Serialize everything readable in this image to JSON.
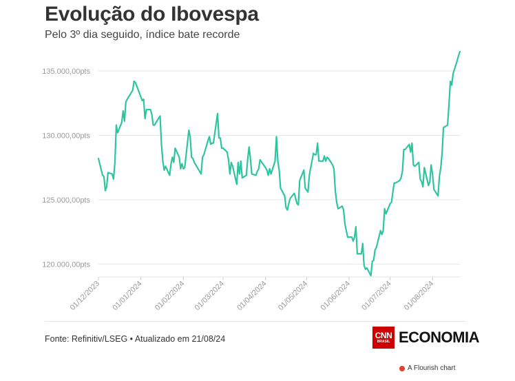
{
  "header": {
    "title": "Evolução do Ibovespa",
    "subtitle": "Pelo 3º dia seguido, índice bate recorde"
  },
  "footer": {
    "source": "Fonte: Refinitiv/LSEG • Atualizado em 21/08/24",
    "logo_badge": "CNN",
    "logo_badge_sub": "BRASIL",
    "logo_text": "ECONOMIA",
    "flourish_credit": "A Flourish chart"
  },
  "colors": {
    "line": "#2ec4a0",
    "grid": "#e6e6e6",
    "brand_red": "#cc0000"
  },
  "chart_data": {
    "type": "line",
    "title": "Evolução do Ibovespa",
    "subtitle": "Pelo 3º dia seguido, índice bate recorde",
    "xlabel": "",
    "ylabel": "",
    "ylim": [
      119000,
      136500
    ],
    "yticks": [
      120000,
      125000,
      130000,
      135000
    ],
    "ytick_labels": [
      "120.000,00pts",
      "125.000,00pts",
      "130.000,00pts",
      "135.000,00pts"
    ],
    "xticks": [
      "2023-12-01",
      "2024-01-01",
      "2024-02-01",
      "2024-03-01",
      "2024-04-01",
      "2024-05-01",
      "2024-06-01",
      "2024-07-01",
      "2024-08-01"
    ],
    "xtick_labels": [
      "01/12/2023",
      "01/01/2024",
      "01/02/2024",
      "01/03/2024",
      "01/04/2024",
      "01/05/2024",
      "01/06/2024",
      "01/07/2024",
      "01/08/2024"
    ],
    "xlim": [
      "2023-12-01",
      "2024-08-21"
    ],
    "grid": true,
    "series": [
      {
        "values": [
          [
            "2023-12-01",
            128200
          ],
          [
            "2023-12-04",
            126900
          ],
          [
            "2023-12-05",
            126800
          ],
          [
            "2023-12-06",
            125700
          ],
          [
            "2023-12-07",
            126000
          ],
          [
            "2023-12-08",
            127100
          ],
          [
            "2023-12-11",
            127000
          ],
          [
            "2023-12-12",
            126600
          ],
          [
            "2023-12-13",
            127900
          ],
          [
            "2023-12-14",
            130800
          ],
          [
            "2023-12-15",
            130200
          ],
          [
            "2023-12-18",
            131000
          ],
          [
            "2023-12-19",
            131900
          ],
          [
            "2023-12-20",
            131100
          ],
          [
            "2023-12-21",
            132600
          ],
          [
            "2023-12-22",
            132800
          ],
          [
            "2023-12-26",
            133500
          ],
          [
            "2023-12-27",
            134200
          ],
          [
            "2023-12-28",
            134100
          ],
          [
            "2024-01-02",
            132700
          ],
          [
            "2024-01-03",
            132800
          ],
          [
            "2024-01-04",
            131300
          ],
          [
            "2024-01-05",
            132000
          ],
          [
            "2024-01-08",
            132000
          ],
          [
            "2024-01-09",
            131600
          ],
          [
            "2024-01-10",
            130800
          ],
          [
            "2024-01-11",
            130800
          ],
          [
            "2024-01-12",
            131000
          ],
          [
            "2024-01-15",
            131500
          ],
          [
            "2024-01-16",
            129300
          ],
          [
            "2024-01-17",
            128000
          ],
          [
            "2024-01-18",
            127300
          ],
          [
            "2024-01-19",
            127600
          ],
          [
            "2024-01-22",
            126900
          ],
          [
            "2024-01-23",
            127800
          ],
          [
            "2024-01-24",
            128300
          ],
          [
            "2024-01-25",
            127900
          ],
          [
            "2024-01-26",
            129000
          ],
          [
            "2024-01-29",
            128300
          ],
          [
            "2024-01-30",
            127400
          ],
          [
            "2024-01-31",
            127800
          ],
          [
            "2024-02-01",
            127400
          ],
          [
            "2024-02-02",
            127500
          ],
          [
            "2024-02-05",
            130400
          ],
          [
            "2024-02-06",
            129900
          ],
          [
            "2024-02-07",
            128300
          ],
          [
            "2024-02-08",
            128200
          ],
          [
            "2024-02-09",
            127900
          ],
          [
            "2024-02-14",
            127000
          ],
          [
            "2024-02-15",
            128300
          ],
          [
            "2024-02-16",
            128500
          ],
          [
            "2024-02-19",
            129600
          ],
          [
            "2024-02-20",
            129900
          ],
          [
            "2024-02-21",
            129300
          ],
          [
            "2024-02-22",
            129400
          ],
          [
            "2024-02-23",
            129400
          ],
          [
            "2024-02-26",
            131700
          ],
          [
            "2024-02-27",
            129800
          ],
          [
            "2024-02-28",
            129800
          ],
          [
            "2024-02-29",
            129000
          ],
          [
            "2024-03-01",
            129000
          ],
          [
            "2024-03-04",
            128700
          ],
          [
            "2024-03-05",
            128100
          ],
          [
            "2024-03-06",
            127000
          ],
          [
            "2024-03-07",
            127900
          ],
          [
            "2024-03-08",
            127600
          ],
          [
            "2024-03-11",
            126200
          ],
          [
            "2024-03-12",
            127900
          ],
          [
            "2024-03-13",
            127000
          ],
          [
            "2024-03-14",
            128000
          ],
          [
            "2024-03-15",
            126700
          ],
          [
            "2024-03-18",
            126900
          ],
          [
            "2024-03-19",
            128200
          ],
          [
            "2024-03-20",
            129100
          ],
          [
            "2024-03-21",
            128200
          ],
          [
            "2024-03-22",
            127000
          ],
          [
            "2024-03-25",
            126900
          ],
          [
            "2024-03-26",
            127200
          ],
          [
            "2024-03-27",
            127400
          ],
          [
            "2024-03-28",
            128100
          ],
          [
            "2024-04-01",
            127500
          ],
          [
            "2024-04-02",
            127300
          ],
          [
            "2024-04-03",
            126900
          ],
          [
            "2024-04-04",
            127400
          ],
          [
            "2024-04-05",
            127000
          ],
          [
            "2024-04-08",
            128000
          ],
          [
            "2024-04-09",
            129900
          ],
          [
            "2024-04-10",
            128000
          ],
          [
            "2024-04-11",
            127300
          ],
          [
            "2024-04-12",
            125900
          ],
          [
            "2024-04-15",
            125300
          ],
          [
            "2024-04-16",
            124400
          ],
          [
            "2024-04-17",
            124200
          ],
          [
            "2024-04-18",
            124700
          ],
          [
            "2024-04-19",
            125100
          ],
          [
            "2024-04-22",
            125500
          ],
          [
            "2024-04-23",
            125100
          ],
          [
            "2024-04-24",
            124700
          ],
          [
            "2024-04-25",
            124600
          ],
          [
            "2024-04-26",
            126500
          ],
          [
            "2024-04-29",
            127300
          ],
          [
            "2024-04-30",
            125900
          ],
          [
            "2024-05-02",
            125600
          ],
          [
            "2024-05-03",
            126900
          ],
          [
            "2024-05-06",
            128600
          ],
          [
            "2024-05-07",
            128500
          ],
          [
            "2024-05-08",
            128500
          ],
          [
            "2024-05-09",
            129400
          ],
          [
            "2024-05-10",
            128000
          ],
          [
            "2024-05-13",
            128000
          ],
          [
            "2024-05-14",
            128400
          ],
          [
            "2024-05-15",
            128000
          ],
          [
            "2024-05-16",
            128300
          ],
          [
            "2024-05-17",
            128200
          ],
          [
            "2024-05-20",
            127700
          ],
          [
            "2024-05-21",
            127400
          ],
          [
            "2024-05-22",
            125700
          ],
          [
            "2024-05-23",
            124800
          ],
          [
            "2024-05-24",
            124300
          ],
          [
            "2024-05-27",
            124500
          ],
          [
            "2024-05-28",
            124200
          ],
          [
            "2024-05-29",
            123100
          ],
          [
            "2024-05-31",
            122100
          ],
          [
            "2024-06-03",
            122100
          ],
          [
            "2024-06-04",
            121800
          ],
          [
            "2024-06-05",
            122100
          ],
          [
            "2024-06-06",
            122900
          ],
          [
            "2024-06-07",
            120800
          ],
          [
            "2024-06-10",
            120800
          ],
          [
            "2024-06-11",
            121600
          ],
          [
            "2024-06-12",
            119900
          ],
          [
            "2024-06-13",
            119600
          ],
          [
            "2024-06-14",
            119700
          ],
          [
            "2024-06-17",
            119100
          ],
          [
            "2024-06-18",
            120200
          ],
          [
            "2024-06-19",
            120300
          ],
          [
            "2024-06-20",
            121100
          ],
          [
            "2024-06-21",
            121300
          ],
          [
            "2024-06-24",
            122600
          ],
          [
            "2024-06-25",
            122300
          ],
          [
            "2024-06-26",
            122600
          ],
          [
            "2024-06-27",
            124300
          ],
          [
            "2024-06-28",
            123900
          ],
          [
            "2024-07-01",
            124700
          ],
          [
            "2024-07-02",
            124800
          ],
          [
            "2024-07-03",
            125600
          ],
          [
            "2024-07-04",
            126300
          ],
          [
            "2024-07-05",
            126300
          ],
          [
            "2024-07-08",
            126500
          ],
          [
            "2024-07-09",
            126700
          ],
          [
            "2024-07-10",
            127200
          ],
          [
            "2024-07-11",
            128900
          ],
          [
            "2024-07-12",
            128900
          ],
          [
            "2024-07-15",
            129300
          ],
          [
            "2024-07-16",
            128700
          ],
          [
            "2024-07-17",
            129400
          ],
          [
            "2024-07-18",
            127700
          ],
          [
            "2024-07-19",
            127600
          ],
          [
            "2024-07-22",
            127900
          ],
          [
            "2024-07-23",
            126600
          ],
          [
            "2024-07-24",
            126400
          ],
          [
            "2024-07-25",
            126000
          ],
          [
            "2024-07-26",
            127500
          ],
          [
            "2024-07-29",
            126100
          ],
          [
            "2024-07-30",
            126400
          ],
          [
            "2024-07-31",
            127700
          ],
          [
            "2024-08-01",
            127000
          ],
          [
            "2024-08-02",
            125800
          ],
          [
            "2024-08-05",
            125300
          ],
          [
            "2024-08-06",
            126800
          ],
          [
            "2024-08-07",
            127500
          ],
          [
            "2024-08-08",
            128600
          ],
          [
            "2024-08-09",
            130600
          ],
          [
            "2024-08-12",
            130800
          ],
          [
            "2024-08-13",
            132400
          ],
          [
            "2024-08-14",
            134200
          ],
          [
            "2024-08-15",
            133900
          ],
          [
            "2024-08-16",
            134800
          ],
          [
            "2024-08-19",
            135800
          ],
          [
            "2024-08-20",
            136200
          ],
          [
            "2024-08-21",
            136500
          ]
        ]
      }
    ]
  }
}
